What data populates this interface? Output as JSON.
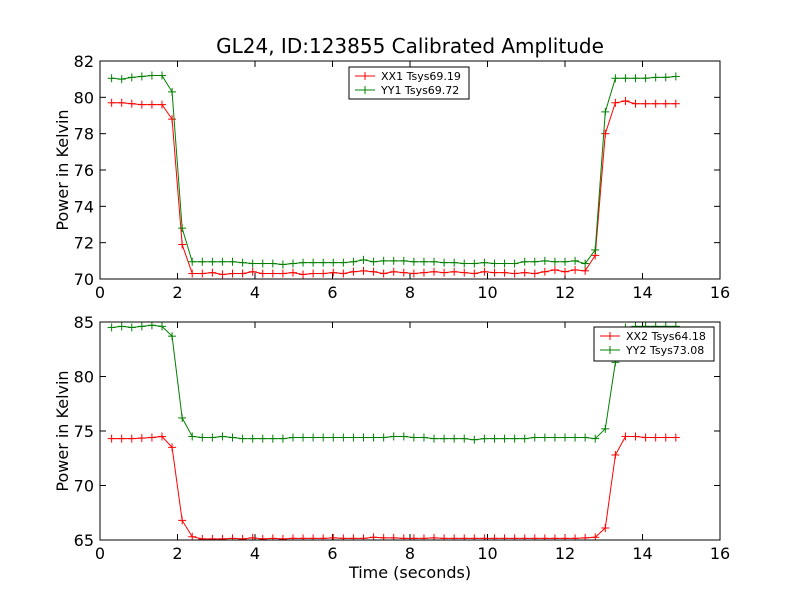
{
  "title": "GL24, ID:123855 Calibrated Amplitude",
  "colors": {
    "red": "#ff0000",
    "green": "#008000"
  },
  "chart_data": [
    {
      "type": "line",
      "xlabel": "",
      "ylabel": "Power in Kelvin",
      "xlim": [
        0,
        16
      ],
      "ylim": [
        70,
        82
      ],
      "xticks": [
        0,
        2,
        4,
        6,
        8,
        10,
        12,
        14,
        16
      ],
      "yticks": [
        70,
        72,
        74,
        76,
        78,
        80,
        82
      ],
      "legend_position": "top-center",
      "grid": false,
      "marker": "+",
      "series": [
        {
          "name": "XX1 Tsys69.19",
          "color": "#ff0000",
          "x": [
            0.3,
            0.56,
            0.82,
            1.08,
            1.34,
            1.6,
            1.86,
            2.12,
            2.38,
            2.64,
            2.9,
            3.16,
            3.42,
            3.68,
            3.94,
            4.2,
            4.46,
            4.72,
            4.98,
            5.24,
            5.5,
            5.76,
            6.02,
            6.28,
            6.54,
            6.8,
            7.06,
            7.32,
            7.58,
            7.84,
            8.1,
            8.36,
            8.62,
            8.88,
            9.14,
            9.4,
            9.66,
            9.92,
            10.18,
            10.44,
            10.7,
            10.96,
            11.22,
            11.48,
            11.74,
            12.0,
            12.26,
            12.52,
            12.78,
            13.04,
            13.3,
            13.56,
            13.82,
            14.08,
            14.34,
            14.6,
            14.86
          ],
          "y": [
            79.7,
            79.7,
            79.65,
            79.6,
            79.6,
            79.6,
            78.8,
            71.9,
            70.3,
            70.3,
            70.35,
            70.25,
            70.3,
            70.3,
            70.4,
            70.3,
            70.3,
            70.3,
            70.35,
            70.25,
            70.3,
            70.3,
            70.35,
            70.3,
            70.4,
            70.45,
            70.4,
            70.3,
            70.4,
            70.35,
            70.3,
            70.35,
            70.4,
            70.35,
            70.4,
            70.35,
            70.3,
            70.4,
            70.35,
            70.35,
            70.3,
            70.35,
            70.3,
            70.4,
            70.5,
            70.4,
            70.5,
            70.45,
            71.3,
            78.0,
            79.7,
            79.8,
            79.65,
            79.65,
            79.65,
            79.65,
            79.65
          ]
        },
        {
          "name": "YY1 Tsys69.72",
          "color": "#008000",
          "x": [
            0.3,
            0.56,
            0.82,
            1.08,
            1.34,
            1.6,
            1.86,
            2.12,
            2.38,
            2.64,
            2.9,
            3.16,
            3.42,
            3.68,
            3.94,
            4.2,
            4.46,
            4.72,
            4.98,
            5.24,
            5.5,
            5.76,
            6.02,
            6.28,
            6.54,
            6.8,
            7.06,
            7.32,
            7.58,
            7.84,
            8.1,
            8.36,
            8.62,
            8.88,
            9.14,
            9.4,
            9.66,
            9.92,
            10.18,
            10.44,
            10.7,
            10.96,
            11.22,
            11.48,
            11.74,
            12.0,
            12.26,
            12.52,
            12.78,
            13.04,
            13.3,
            13.56,
            13.82,
            14.08,
            14.34,
            14.6,
            14.86
          ],
          "y": [
            81.05,
            81.0,
            81.1,
            81.15,
            81.2,
            81.2,
            80.3,
            72.8,
            70.95,
            70.95,
            70.95,
            70.95,
            70.95,
            70.9,
            70.85,
            70.85,
            70.85,
            70.8,
            70.85,
            70.9,
            70.9,
            70.9,
            70.9,
            70.9,
            70.95,
            71.05,
            70.95,
            71.0,
            71.0,
            71.0,
            70.95,
            70.95,
            70.95,
            70.9,
            70.9,
            70.85,
            70.85,
            70.9,
            70.85,
            70.85,
            70.85,
            70.95,
            70.95,
            71.0,
            70.95,
            70.95,
            71.0,
            70.85,
            71.6,
            79.2,
            81.05,
            81.05,
            81.05,
            81.05,
            81.1,
            81.1,
            81.15
          ]
        }
      ]
    },
    {
      "type": "line",
      "xlabel": "Time (seconds)",
      "ylabel": "Power in Kelvin",
      "xlim": [
        0,
        16
      ],
      "ylim": [
        65,
        85
      ],
      "xticks": [
        0,
        2,
        4,
        6,
        8,
        10,
        12,
        14,
        16
      ],
      "yticks": [
        65,
        70,
        75,
        80,
        85
      ],
      "legend_position": "top-right",
      "grid": false,
      "marker": "+",
      "series": [
        {
          "name": "XX2 Tsys64.18",
          "color": "#ff0000",
          "x": [
            0.3,
            0.56,
            0.82,
            1.08,
            1.34,
            1.6,
            1.86,
            2.12,
            2.38,
            2.64,
            2.9,
            3.16,
            3.42,
            3.68,
            3.94,
            4.2,
            4.46,
            4.72,
            4.98,
            5.24,
            5.5,
            5.76,
            6.02,
            6.28,
            6.54,
            6.8,
            7.06,
            7.32,
            7.58,
            7.84,
            8.1,
            8.36,
            8.62,
            8.88,
            9.14,
            9.4,
            9.66,
            9.92,
            10.18,
            10.44,
            10.7,
            10.96,
            11.22,
            11.48,
            11.74,
            12.0,
            12.26,
            12.52,
            12.78,
            13.04,
            13.3,
            13.56,
            13.82,
            14.08,
            14.34,
            14.6,
            14.86
          ],
          "y": [
            74.3,
            74.3,
            74.3,
            74.35,
            74.4,
            74.5,
            73.5,
            66.8,
            65.3,
            65.1,
            65.1,
            65.1,
            65.15,
            65.1,
            65.2,
            65.1,
            65.15,
            65.1,
            65.15,
            65.15,
            65.15,
            65.15,
            65.2,
            65.15,
            65.15,
            65.15,
            65.25,
            65.2,
            65.2,
            65.15,
            65.15,
            65.15,
            65.2,
            65.15,
            65.15,
            65.15,
            65.15,
            65.15,
            65.15,
            65.15,
            65.15,
            65.15,
            65.15,
            65.15,
            65.15,
            65.15,
            65.15,
            65.2,
            65.25,
            66.1,
            72.8,
            74.5,
            74.5,
            74.4,
            74.4,
            74.4,
            74.4
          ]
        },
        {
          "name": "YY2 Tsys73.08",
          "color": "#008000",
          "x": [
            0.3,
            0.56,
            0.82,
            1.08,
            1.34,
            1.6,
            1.86,
            2.12,
            2.38,
            2.64,
            2.9,
            3.16,
            3.42,
            3.68,
            3.94,
            4.2,
            4.46,
            4.72,
            4.98,
            5.24,
            5.5,
            5.76,
            6.02,
            6.28,
            6.54,
            6.8,
            7.06,
            7.32,
            7.58,
            7.84,
            8.1,
            8.36,
            8.62,
            8.88,
            9.14,
            9.4,
            9.66,
            9.92,
            10.18,
            10.44,
            10.7,
            10.96,
            11.22,
            11.48,
            11.74,
            12.0,
            12.26,
            12.52,
            12.78,
            13.04,
            13.3,
            13.56,
            13.82,
            14.08,
            14.34,
            14.6,
            14.86
          ],
          "y": [
            84.5,
            84.6,
            84.5,
            84.6,
            84.7,
            84.6,
            83.7,
            76.2,
            74.5,
            74.4,
            74.4,
            74.5,
            74.4,
            74.3,
            74.3,
            74.3,
            74.3,
            74.3,
            74.4,
            74.4,
            74.4,
            74.4,
            74.4,
            74.4,
            74.4,
            74.4,
            74.4,
            74.4,
            74.5,
            74.5,
            74.4,
            74.4,
            74.3,
            74.3,
            74.3,
            74.3,
            74.2,
            74.3,
            74.3,
            74.3,
            74.3,
            74.3,
            74.4,
            74.4,
            74.4,
            74.4,
            74.4,
            74.4,
            74.3,
            75.2,
            81.3,
            84.5,
            84.6,
            84.6,
            84.6,
            84.6,
            84.6
          ]
        }
      ]
    }
  ]
}
